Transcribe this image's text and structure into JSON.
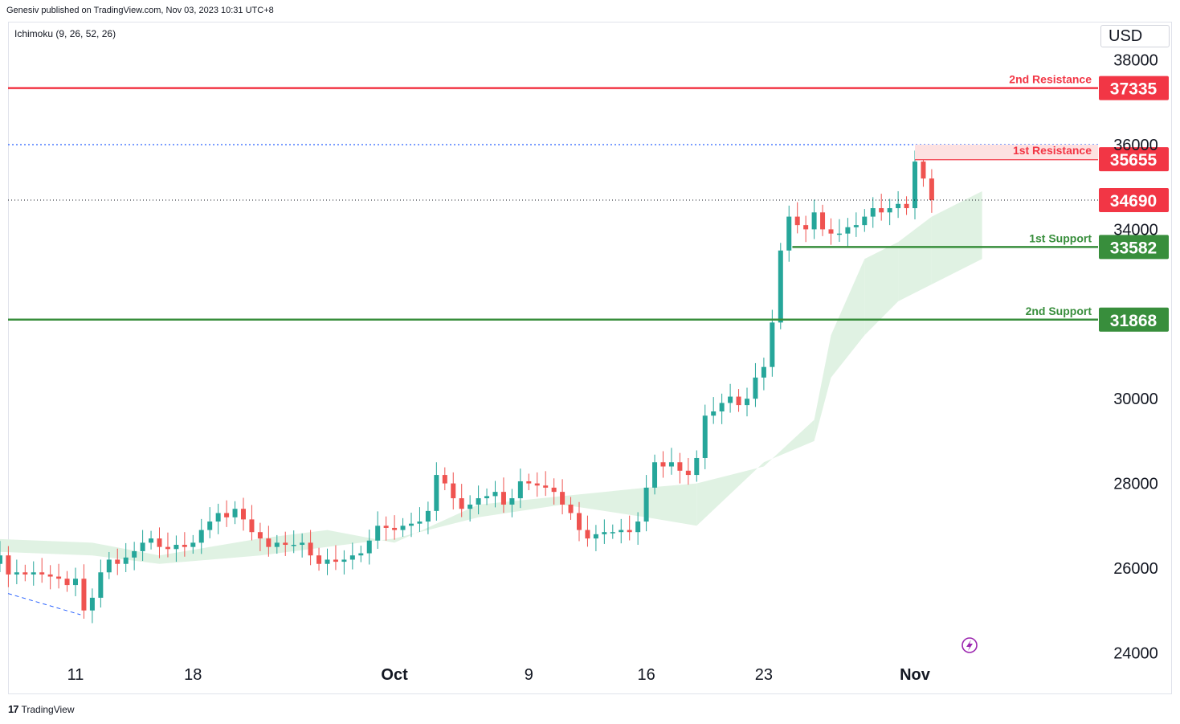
{
  "header": {
    "publisher": "Genesiv published on TradingView.com, Nov 03, 2023 10:31 UTC+8",
    "indicator": "Ichimoku (9, 26, 52, 26)",
    "currency": "USD"
  },
  "footer": {
    "logo": "17",
    "brand": "TradingView"
  },
  "colors": {
    "up": "#26a69a",
    "down": "#ef5350",
    "resistance": "#f23645",
    "support": "#388e3c",
    "cloud_up": "#e0f2e3",
    "cloud_down": "#fde1e1",
    "grid_text": "#131722"
  },
  "chart_data": {
    "type": "candlestick",
    "ylim": [
      24000,
      38500
    ],
    "y_ticks": [
      "24000",
      "26000",
      "28000",
      "30000",
      "34000",
      "36000",
      "38000"
    ],
    "x_ticks": [
      "11",
      "18",
      "Oct",
      "9",
      "16",
      "23",
      "Nov"
    ],
    "x_tick_days": [
      11,
      18,
      30,
      38,
      45,
      52,
      61
    ],
    "x_date_axis": "days since Sep 0, 2023",
    "current_price": 34690,
    "high_marker": 36000,
    "levels": [
      {
        "label": "2nd Resistance",
        "value": 37335,
        "price_text": "37335",
        "kind": "resistance"
      },
      {
        "label": "1st Resistance",
        "value": 35655,
        "price_text": "35655",
        "kind": "resistance"
      },
      {
        "label": "",
        "value": 34690,
        "price_text": "34690",
        "kind": "current"
      },
      {
        "label": "1st Support",
        "value": 33582,
        "price_text": "33582",
        "kind": "support"
      },
      {
        "label": "2nd Support",
        "value": 31868,
        "price_text": "31868",
        "kind": "support"
      }
    ],
    "closes": [
      [
        5.5,
        25600
      ],
      [
        6,
        26100
      ],
      [
        6.5,
        26300
      ],
      [
        7,
        25850
      ],
      [
        7.5,
        25900
      ],
      [
        8,
        25850
      ],
      [
        8.5,
        25900
      ],
      [
        9,
        25850
      ],
      [
        9.5,
        25800
      ],
      [
        10,
        25750
      ],
      [
        10.5,
        25600
      ],
      [
        11,
        25750
      ],
      [
        11.5,
        25000
      ],
      [
        12,
        25300
      ],
      [
        12.5,
        25900
      ],
      [
        13,
        26200
      ],
      [
        13.5,
        26100
      ],
      [
        14,
        26250
      ],
      [
        14.5,
        26400
      ],
      [
        15,
        26600
      ],
      [
        15.5,
        26700
      ],
      [
        16,
        26500
      ],
      [
        16.5,
        26450
      ],
      [
        17,
        26550
      ],
      [
        17.5,
        26500
      ],
      [
        18,
        26600
      ],
      [
        18.5,
        26900
      ],
      [
        19,
        27100
      ],
      [
        19.5,
        27300
      ],
      [
        20,
        27200
      ],
      [
        20.5,
        27400
      ],
      [
        21,
        27150
      ],
      [
        21.5,
        26850
      ],
      [
        22,
        26700
      ],
      [
        22.5,
        26500
      ],
      [
        23,
        26600
      ],
      [
        23.5,
        26550
      ],
      [
        24,
        26550
      ],
      [
        24.5,
        26600
      ],
      [
        25,
        26300
      ],
      [
        25.5,
        26100
      ],
      [
        26,
        26200
      ],
      [
        26.5,
        26150
      ],
      [
        27,
        26200
      ],
      [
        27.5,
        26300
      ],
      [
        28,
        26350
      ],
      [
        28.5,
        26650
      ],
      [
        29,
        27000
      ],
      [
        29.5,
        26950
      ],
      [
        30,
        26900
      ],
      [
        30.5,
        27000
      ],
      [
        31,
        27050
      ],
      [
        31.5,
        27100
      ],
      [
        32,
        27350
      ],
      [
        32.5,
        28200
      ],
      [
        33,
        28000
      ],
      [
        33.5,
        27650
      ],
      [
        34,
        27400
      ],
      [
        34.5,
        27500
      ],
      [
        35,
        27650
      ],
      [
        35.5,
        27700
      ],
      [
        36,
        27800
      ],
      [
        36.5,
        27500
      ],
      [
        37,
        27650
      ],
      [
        37.5,
        28050
      ],
      [
        38,
        28000
      ],
      [
        38.5,
        27950
      ],
      [
        39,
        27900
      ],
      [
        39.5,
        27800
      ],
      [
        40,
        27500
      ],
      [
        40.5,
        27300
      ],
      [
        41,
        26900
      ],
      [
        41.5,
        26700
      ],
      [
        42,
        26800
      ],
      [
        42.5,
        26850
      ],
      [
        43,
        26850
      ],
      [
        43.5,
        26900
      ],
      [
        44,
        26850
      ],
      [
        44.5,
        27100
      ],
      [
        45,
        27900
      ],
      [
        45.5,
        28500
      ],
      [
        46,
        28400
      ],
      [
        46.5,
        28500
      ],
      [
        47,
        28300
      ],
      [
        47.5,
        28200
      ],
      [
        48,
        28600
      ],
      [
        48.5,
        29600
      ],
      [
        49,
        29700
      ],
      [
        49.5,
        29900
      ],
      [
        50,
        30050
      ],
      [
        50.5,
        29850
      ],
      [
        51,
        30000
      ],
      [
        51.5,
        30500
      ],
      [
        52,
        30750
      ],
      [
        52.5,
        31800
      ],
      [
        53,
        33500
      ],
      [
        53.5,
        34300
      ],
      [
        54,
        34100
      ],
      [
        54.5,
        34000
      ],
      [
        55,
        34400
      ],
      [
        55.5,
        34000
      ],
      [
        56,
        33900
      ],
      [
        56.5,
        33900
      ],
      [
        57,
        34050
      ],
      [
        57.5,
        34100
      ],
      [
        58,
        34300
      ],
      [
        58.5,
        34500
      ],
      [
        59,
        34400
      ],
      [
        59.5,
        34500
      ],
      [
        60,
        34600
      ],
      [
        60.5,
        34500
      ],
      [
        61,
        35600
      ],
      [
        61.5,
        35200
      ],
      [
        62,
        34690
      ]
    ],
    "cloud": {
      "band_a": [
        [
          5.5,
          26700
        ],
        [
          12,
          26600
        ],
        [
          16,
          26300
        ],
        [
          22,
          26700
        ],
        [
          26,
          26900
        ],
        [
          30,
          26600
        ],
        [
          35,
          27500
        ],
        [
          40,
          27700
        ],
        [
          45,
          27900
        ],
        [
          48,
          28000
        ],
        [
          52,
          28400
        ],
        [
          55,
          29500
        ],
        [
          56,
          31500
        ],
        [
          58,
          33300
        ],
        [
          60,
          33700
        ],
        [
          62,
          34300
        ],
        [
          65,
          34900
        ]
      ],
      "band_b": [
        [
          5.5,
          26400
        ],
        [
          12,
          26300
        ],
        [
          16,
          26100
        ],
        [
          22,
          26300
        ],
        [
          26,
          26500
        ],
        [
          30,
          26700
        ],
        [
          35,
          27200
        ],
        [
          40,
          27500
        ],
        [
          45,
          27200
        ],
        [
          48,
          27000
        ],
        [
          52,
          28500
        ],
        [
          55,
          29000
        ],
        [
          56,
          30500
        ],
        [
          58,
          31500
        ],
        [
          60,
          32300
        ],
        [
          62,
          32700
        ],
        [
          65,
          33300
        ]
      ]
    }
  }
}
